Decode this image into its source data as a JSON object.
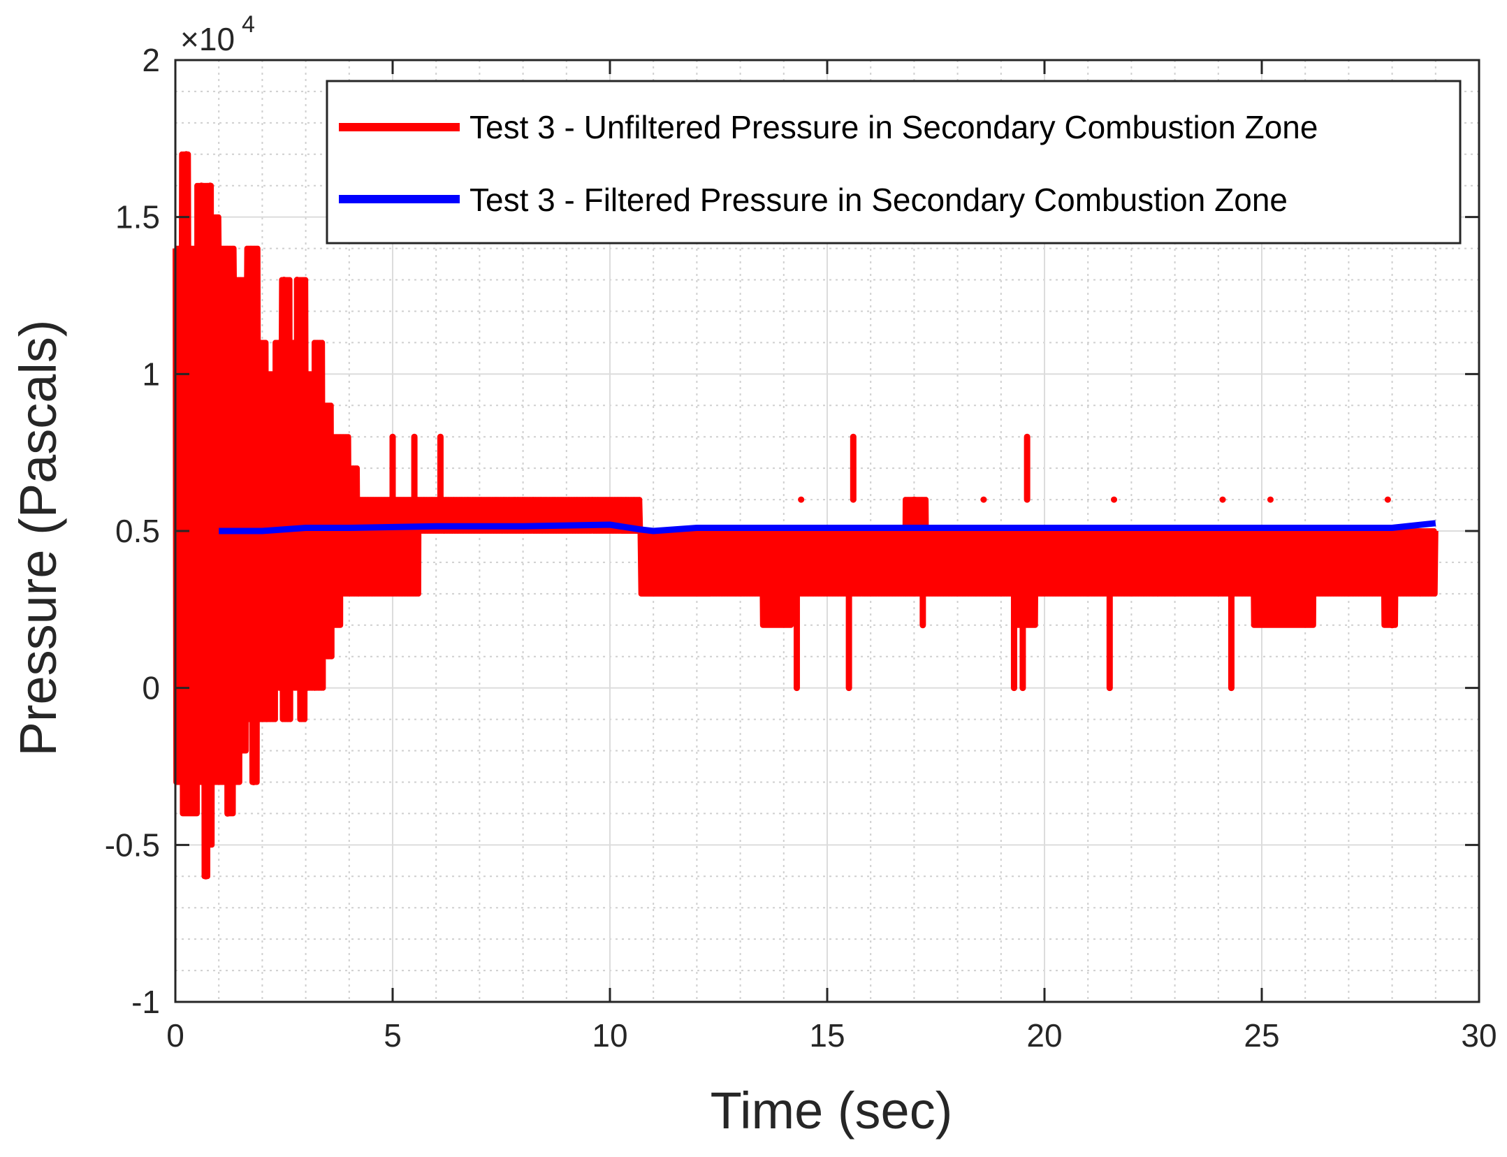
{
  "chart_data": {
    "type": "line",
    "xlabel": "Time (sec)",
    "ylabel": "Pressure (Pascals)",
    "y_multiplier_base": "×10",
    "y_multiplier_exponent": "4",
    "xlim": [
      0,
      30
    ],
    "ylim": [
      -10000,
      20000
    ],
    "x_ticks": [
      0,
      5,
      10,
      15,
      20,
      25,
      30
    ],
    "x_tick_labels": [
      "0",
      "5",
      "10",
      "15",
      "20",
      "25",
      "30"
    ],
    "y_ticks": [
      -10000,
      -5000,
      0,
      5000,
      10000,
      15000,
      20000
    ],
    "y_tick_labels": [
      "-1",
      "-0.5",
      "0",
      "0.5",
      "1",
      "1.5",
      "2"
    ],
    "grid": true,
    "minor_grid": true,
    "legend_position": "top-right",
    "series": [
      {
        "name": "Test 3 - Unfiltered Pressure in Secondary Combustion Zone",
        "color": "#ff0000",
        "segments": [
          [
            0.0,
            0.15,
            -3000,
            14000
          ],
          [
            0.15,
            0.3,
            -4000,
            17000
          ],
          [
            0.3,
            0.5,
            -4000,
            14000
          ],
          [
            0.5,
            0.65,
            -3000,
            16000
          ],
          [
            0.65,
            0.75,
            -6000,
            16000
          ],
          [
            0.75,
            0.85,
            -5000,
            16000
          ],
          [
            0.85,
            1.0,
            -3000,
            15000
          ],
          [
            1.0,
            1.2,
            -3000,
            14000
          ],
          [
            1.2,
            1.35,
            -4000,
            14000
          ],
          [
            1.35,
            1.5,
            -3000,
            13000
          ],
          [
            1.5,
            1.65,
            -2000,
            13000
          ],
          [
            1.65,
            1.75,
            -1000,
            14000
          ],
          [
            1.75,
            1.9,
            -3000,
            14000
          ],
          [
            1.9,
            2.1,
            -1000,
            11000
          ],
          [
            2.1,
            2.3,
            -1000,
            10000
          ],
          [
            2.3,
            2.45,
            0,
            11000
          ],
          [
            2.45,
            2.65,
            -1000,
            13000
          ],
          [
            2.65,
            2.85,
            0,
            11000
          ],
          [
            2.85,
            3.0,
            -1000,
            13000
          ],
          [
            3.0,
            3.2,
            0,
            10000
          ],
          [
            3.2,
            3.4,
            0,
            11000
          ],
          [
            3.4,
            3.6,
            1000,
            9000
          ],
          [
            3.6,
            3.8,
            2000,
            8000
          ],
          [
            3.8,
            4.0,
            3000,
            8000
          ],
          [
            4.0,
            4.2,
            3000,
            7000
          ],
          [
            4.2,
            5.0,
            3000,
            6000
          ],
          [
            5.0,
            5.6,
            3000,
            6000
          ],
          [
            5.6,
            6.0,
            5000,
            6000
          ],
          [
            6.0,
            6.4,
            5000,
            6000
          ],
          [
            6.4,
            7.8,
            5000,
            6000
          ],
          [
            7.8,
            8.0,
            5000,
            6000
          ],
          [
            8.0,
            9.6,
            5000,
            6000
          ],
          [
            9.6,
            10.7,
            5000,
            6000
          ],
          [
            10.7,
            11.0,
            3000,
            5000
          ],
          [
            11.0,
            12.4,
            3000,
            5000
          ],
          [
            12.4,
            13.5,
            3000,
            5000
          ],
          [
            13.5,
            14.2,
            2000,
            5000
          ],
          [
            14.2,
            14.6,
            3000,
            5000
          ],
          [
            14.6,
            15.5,
            3000,
            5000
          ],
          [
            15.5,
            15.8,
            3000,
            5000
          ],
          [
            15.8,
            16.8,
            3000,
            5000
          ],
          [
            16.8,
            17.3,
            3000,
            6000
          ],
          [
            17.3,
            18.6,
            3000,
            5000
          ],
          [
            18.6,
            19.3,
            3000,
            5000
          ],
          [
            19.3,
            19.8,
            2000,
            5000
          ],
          [
            19.8,
            21.5,
            3000,
            5000
          ],
          [
            21.5,
            22.6,
            3000,
            5000
          ],
          [
            22.6,
            24.0,
            3000,
            5000
          ],
          [
            24.0,
            24.8,
            3000,
            5000
          ],
          [
            24.8,
            26.2,
            2000,
            5000
          ],
          [
            26.2,
            27.8,
            3000,
            5000
          ],
          [
            27.8,
            28.1,
            2000,
            5000
          ],
          [
            28.1,
            29.0,
            3000,
            5000
          ]
        ],
        "spikes": [
          [
            0.25,
            17000
          ],
          [
            0.6,
            16000
          ],
          [
            0.8,
            16000
          ],
          [
            0.7,
            -6000
          ],
          [
            1.2,
            -4000
          ],
          [
            1.8,
            -3000
          ],
          [
            2.5,
            13000
          ],
          [
            2.8,
            13000
          ],
          [
            5.0,
            8000
          ],
          [
            5.5,
            8000
          ],
          [
            6.1,
            8000
          ],
          [
            14.3,
            0
          ],
          [
            14.4,
            6000
          ],
          [
            15.5,
            0
          ],
          [
            15.6,
            8000
          ],
          [
            17.0,
            6000
          ],
          [
            17.2,
            2000
          ],
          [
            18.6,
            6000
          ],
          [
            19.3,
            0
          ],
          [
            19.6,
            8000
          ],
          [
            19.5,
            0
          ],
          [
            21.5,
            0
          ],
          [
            21.6,
            6000
          ],
          [
            24.3,
            0
          ],
          [
            24.1,
            6000
          ],
          [
            25.2,
            6000
          ],
          [
            27.9,
            6000
          ],
          [
            28.0,
            2000
          ]
        ]
      },
      {
        "name": "Test 3 - Filtered Pressure in Secondary Combustion Zone",
        "color": "#0000ff",
        "x": [
          1.0,
          2.0,
          3.0,
          4.0,
          6.0,
          8.0,
          10.0,
          10.7,
          11.0,
          12.0,
          15.0,
          20.0,
          25.0,
          27.0,
          28.0,
          29.0
        ],
        "y": [
          5000,
          5000,
          5100,
          5100,
          5150,
          5150,
          5200,
          5050,
          5000,
          5100,
          5100,
          5100,
          5100,
          5100,
          5100,
          5250
        ]
      }
    ]
  }
}
